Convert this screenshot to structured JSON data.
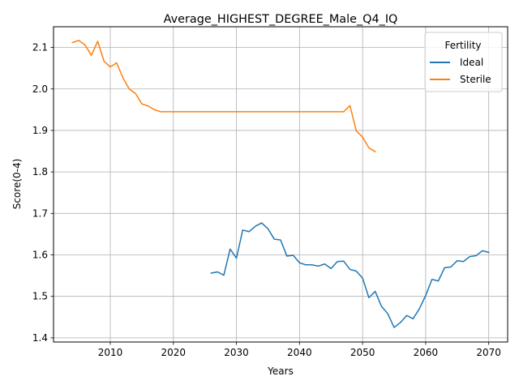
{
  "chart_data": {
    "type": "line",
    "title": "Average_HIGHEST_DEGREE_Male_Q4_IQ",
    "xlabel": "Years",
    "ylabel": "Score(0-4)",
    "xlim": [
      2001,
      2073
    ],
    "ylim": [
      1.39,
      2.15
    ],
    "xticks": [
      2010,
      2020,
      2030,
      2040,
      2050,
      2060,
      2070
    ],
    "yticks": [
      1.4,
      1.5,
      1.6,
      1.7,
      1.8,
      1.9,
      2.0,
      2.1
    ],
    "ytick_labels": [
      "1.4",
      "1.5",
      "1.6",
      "1.7",
      "1.8",
      "1.9",
      "2.0",
      "2.1"
    ],
    "grid": true,
    "legend": {
      "title": "Fertility",
      "position": "top-right"
    },
    "series": [
      {
        "name": "Ideal",
        "color": "#1f77b4",
        "points": [
          [
            2026,
            1.556
          ],
          [
            2027,
            1.559
          ],
          [
            2028,
            1.551
          ],
          [
            2029,
            1.614
          ],
          [
            2030,
            1.592
          ],
          [
            2031,
            1.66
          ],
          [
            2032,
            1.656
          ],
          [
            2033,
            1.669
          ],
          [
            2034,
            1.677
          ],
          [
            2035,
            1.663
          ],
          [
            2036,
            1.638
          ],
          [
            2037,
            1.636
          ],
          [
            2038,
            1.597
          ],
          [
            2039,
            1.599
          ],
          [
            2040,
            1.581
          ],
          [
            2041,
            1.576
          ],
          [
            2042,
            1.576
          ],
          [
            2043,
            1.573
          ],
          [
            2044,
            1.578
          ],
          [
            2045,
            1.567
          ],
          [
            2046,
            1.584
          ],
          [
            2047,
            1.585
          ],
          [
            2048,
            1.565
          ],
          [
            2049,
            1.561
          ],
          [
            2050,
            1.544
          ],
          [
            2051,
            1.497
          ],
          [
            2052,
            1.512
          ],
          [
            2053,
            1.476
          ],
          [
            2054,
            1.458
          ],
          [
            2055,
            1.425
          ],
          [
            2056,
            1.437
          ],
          [
            2057,
            1.454
          ],
          [
            2058,
            1.446
          ],
          [
            2059,
            1.47
          ],
          [
            2060,
            1.502
          ],
          [
            2061,
            1.541
          ],
          [
            2062,
            1.537
          ],
          [
            2063,
            1.569
          ],
          [
            2064,
            1.571
          ],
          [
            2065,
            1.586
          ],
          [
            2066,
            1.584
          ],
          [
            2067,
            1.596
          ],
          [
            2068,
            1.598
          ],
          [
            2069,
            1.61
          ],
          [
            2070,
            1.606
          ]
        ]
      },
      {
        "name": "Sterile",
        "color": "#ff7f0e",
        "points": [
          [
            2004,
            2.112
          ],
          [
            2005,
            2.117
          ],
          [
            2006,
            2.106
          ],
          [
            2007,
            2.081
          ],
          [
            2008,
            2.115
          ],
          [
            2009,
            2.067
          ],
          [
            2010,
            2.053
          ],
          [
            2011,
            2.063
          ],
          [
            2012,
            2.027
          ],
          [
            2013,
            2.0
          ],
          [
            2014,
            1.989
          ],
          [
            2015,
            1.964
          ],
          [
            2016,
            1.959
          ],
          [
            2017,
            1.95
          ],
          [
            2018,
            1.945
          ],
          [
            2020,
            1.945
          ],
          [
            2025,
            1.945
          ],
          [
            2030,
            1.945
          ],
          [
            2035,
            1.945
          ],
          [
            2040,
            1.945
          ],
          [
            2045,
            1.945
          ],
          [
            2047,
            1.945
          ],
          [
            2048,
            1.96
          ],
          [
            2049,
            1.899
          ],
          [
            2050,
            1.884
          ],
          [
            2051,
            1.858
          ],
          [
            2052,
            1.849
          ]
        ]
      }
    ]
  }
}
